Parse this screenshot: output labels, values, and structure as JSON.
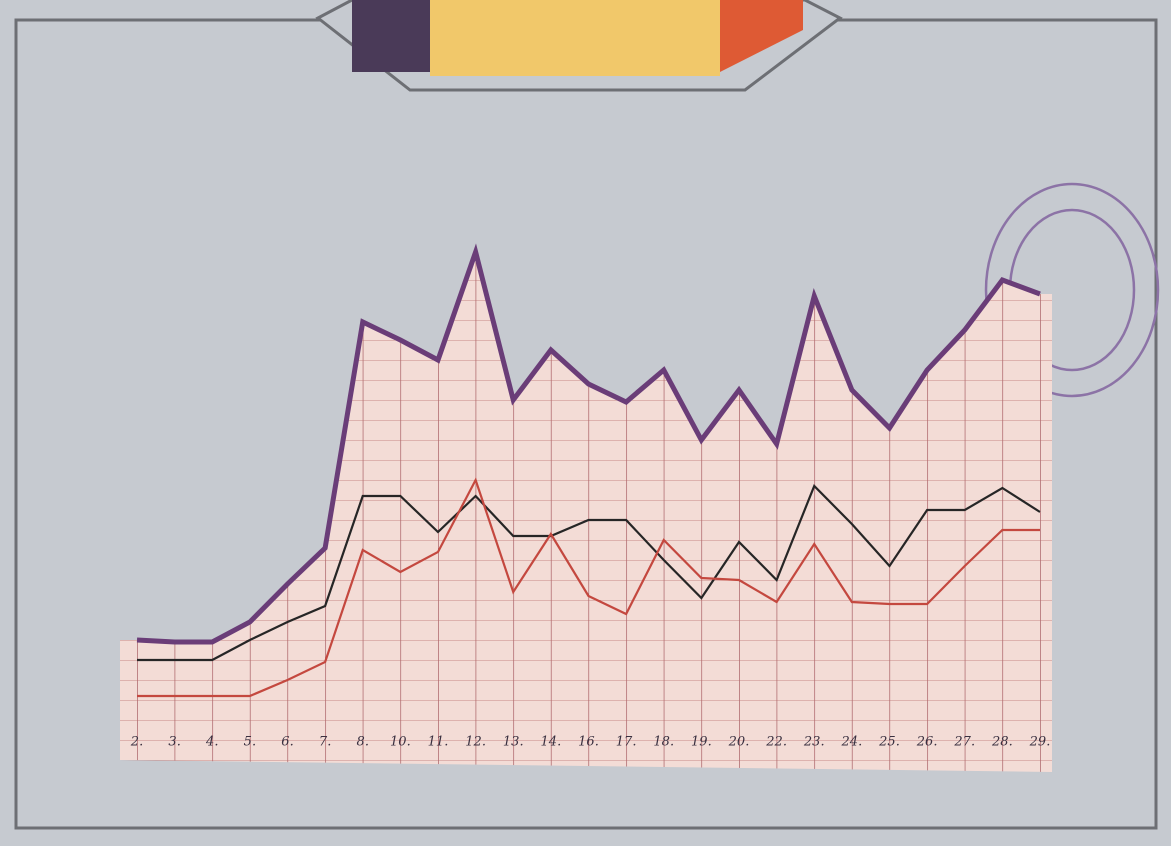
{
  "chart_data": {
    "type": "line",
    "categories": [
      "2.",
      "3.",
      "4.",
      "5.",
      "6.",
      "7.",
      "8.",
      "10.",
      "11.",
      "12.",
      "13.",
      "14.",
      "16.",
      "17.",
      "18.",
      "19.",
      "20.",
      "22.",
      "23.",
      "24.",
      "25.",
      "26.",
      "27.",
      "28.",
      "29."
    ],
    "series": [
      {
        "color": "#6a3d78",
        "values": [
          5,
          4.9,
          4.9,
          5.9,
          7.8,
          9.6,
          20.9,
          20,
          19,
          24.4,
          17,
          19.5,
          17.8,
          16.9,
          18.5,
          15,
          17.5,
          14.8,
          22.2,
          17.5,
          15.6,
          18.5,
          20.5,
          23,
          22.3
        ]
      },
      {
        "color": "#262626",
        "values": [
          4,
          4,
          4,
          5,
          5.9,
          6.7,
          12.2,
          12.2,
          10.4,
          12.2,
          10.2,
          10.2,
          11,
          11,
          9,
          7.1,
          9.9,
          8,
          12.7,
          10.8,
          8.7,
          11.5,
          11.5,
          12.6,
          11.4
        ]
      },
      {
        "color": "#c4483f",
        "values": [
          2.2,
          2.2,
          2.2,
          2.2,
          3,
          3.9,
          9.5,
          8.4,
          9.4,
          13,
          7.4,
          10.3,
          7.2,
          6.3,
          10,
          8.1,
          8,
          6.9,
          9.8,
          6.9,
          6.8,
          6.8,
          8.7,
          10.5,
          10.5
        ]
      }
    ],
    "ylim": [
      0,
      30
    ]
  }
}
